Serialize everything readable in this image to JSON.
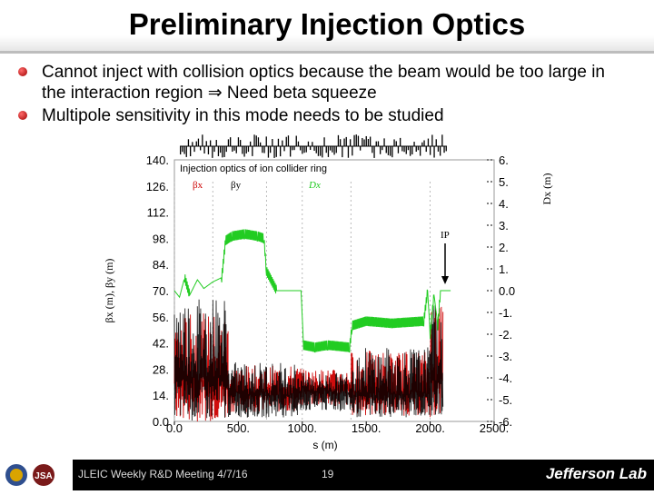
{
  "slide": {
    "title": "Preliminary Injection Optics",
    "bullets": [
      {
        "lines": [
          "Cannot inject with collision optics because the beam would be too large in",
          "the interaction region ⇒ Need beta squeeze"
        ]
      },
      {
        "lines": [
          "Multipole sensitivity in this mode needs to be studied"
        ]
      }
    ]
  },
  "footer": {
    "meeting": "JLEIC Weekly R&D Meeting 4/7/16",
    "page": "19",
    "lab_name": "Jefferson Lab",
    "logo_left": "JSA"
  },
  "chart_data": {
    "type": "line",
    "title": "Injection optics of ion collider ring",
    "xlabel": "s (m)",
    "ylabel": "βx (m), βy (m)",
    "y2label": "Dx (m)",
    "x_ticks": [
      "0.0",
      "500.",
      "1000.",
      "1500.",
      "2000.",
      "2500."
    ],
    "y_ticks": [
      "0.0",
      "14.",
      "28.",
      "42.",
      "56.",
      "70.",
      "84.",
      "98.",
      "112.",
      "126.",
      "140."
    ],
    "y2_ticks": [
      "-6.",
      "-5.",
      "-4.",
      "-3.",
      "-2.",
      "-1.",
      "0.0",
      "1.",
      "2.",
      "3.",
      "4.",
      "5.",
      "6."
    ],
    "xlim": [
      0,
      2500
    ],
    "ylim": [
      0,
      140
    ],
    "y2lim": [
      -6,
      6
    ],
    "legend": [
      "βx",
      "βy",
      "Dx"
    ],
    "annotation": "IP",
    "annotation_x": 2120,
    "series": [
      {
        "name": "βx",
        "color": "#cc0000",
        "segments": [
          {
            "x0": 0,
            "x1": 420,
            "lo": 0,
            "hi": 58,
            "mean": 22
          },
          {
            "x0": 420,
            "x1": 1000,
            "lo": 5,
            "hi": 30,
            "mean": 16
          },
          {
            "x0": 1000,
            "x1": 1380,
            "lo": 8,
            "hi": 28,
            "mean": 18
          },
          {
            "x0": 1380,
            "x1": 2000,
            "lo": 3,
            "hi": 38,
            "mean": 16
          },
          {
            "x0": 2000,
            "x1": 2100,
            "lo": 2,
            "hi": 62,
            "mean": 25
          }
        ]
      },
      {
        "name": "βy",
        "color": "#000000",
        "segments": [
          {
            "x0": 0,
            "x1": 420,
            "lo": 0,
            "hi": 68,
            "mean": 24
          },
          {
            "x0": 420,
            "x1": 1000,
            "lo": 2,
            "hi": 32,
            "mean": 14
          },
          {
            "x0": 1000,
            "x1": 1380,
            "lo": 5,
            "hi": 26,
            "mean": 15
          },
          {
            "x0": 1380,
            "x1": 2000,
            "lo": 2,
            "hi": 40,
            "mean": 14
          },
          {
            "x0": 2000,
            "x1": 2100,
            "lo": 2,
            "hi": 70,
            "mean": 22
          }
        ]
      },
      {
        "name": "Dx",
        "color": "#22cc22",
        "points": [
          [
            0,
            0
          ],
          [
            40,
            -0.3
          ],
          [
            80,
            0.6
          ],
          [
            120,
            -0.2
          ],
          [
            180,
            0.5
          ],
          [
            230,
            0.1
          ],
          [
            300,
            0.4
          ],
          [
            370,
            0.6
          ],
          [
            400,
            2.3
          ],
          [
            450,
            2.5
          ],
          [
            550,
            2.6
          ],
          [
            650,
            2.5
          ],
          [
            700,
            2.4
          ],
          [
            720,
            0.9
          ],
          [
            800,
            0.0
          ],
          [
            900,
            0.0
          ],
          [
            990,
            0.0
          ],
          [
            1010,
            -2.5
          ],
          [
            1100,
            -2.6
          ],
          [
            1200,
            -2.5
          ],
          [
            1370,
            -2.6
          ],
          [
            1390,
            -1.6
          ],
          [
            1500,
            -1.4
          ],
          [
            1700,
            -1.5
          ],
          [
            1950,
            -1.4
          ],
          [
            1980,
            0.0
          ],
          [
            2000,
            -2.0
          ],
          [
            2030,
            -0.2
          ],
          [
            2060,
            -1.6
          ],
          [
            2080,
            0.0
          ],
          [
            2120,
            0.0
          ],
          [
            2160,
            0.0
          ]
        ]
      }
    ]
  }
}
